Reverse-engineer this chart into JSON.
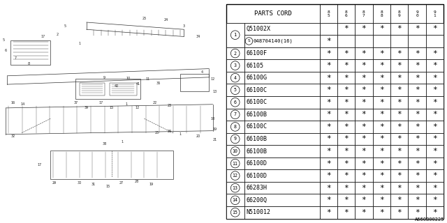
{
  "title": "PARTS CORD",
  "columns": [
    "85",
    "86",
    "87",
    "88",
    "89",
    "90",
    "91"
  ],
  "rows": [
    {
      "num": "1",
      "circled": false,
      "sub_s": false,
      "part": "Q51002X",
      "marks": [
        false,
        true,
        true,
        true,
        true,
        true,
        true
      ]
    },
    {
      "num": "1",
      "circled": false,
      "sub_s": true,
      "part": "048704140(16)",
      "marks": [
        true,
        false,
        false,
        false,
        false,
        false,
        false
      ]
    },
    {
      "num": "2",
      "circled": true,
      "sub_s": false,
      "part": "66100F",
      "marks": [
        true,
        true,
        true,
        true,
        true,
        true,
        true
      ]
    },
    {
      "num": "3",
      "circled": true,
      "sub_s": false,
      "part": "66105",
      "marks": [
        true,
        true,
        true,
        true,
        true,
        true,
        true
      ]
    },
    {
      "num": "4",
      "circled": true,
      "sub_s": false,
      "part": "66100G",
      "marks": [
        true,
        true,
        true,
        true,
        true,
        true,
        true
      ]
    },
    {
      "num": "5",
      "circled": true,
      "sub_s": false,
      "part": "66100C",
      "marks": [
        true,
        true,
        true,
        true,
        true,
        true,
        true
      ]
    },
    {
      "num": "6",
      "circled": true,
      "sub_s": false,
      "part": "66100C",
      "marks": [
        true,
        true,
        true,
        true,
        true,
        true,
        true
      ]
    },
    {
      "num": "7",
      "circled": true,
      "sub_s": false,
      "part": "66100B",
      "marks": [
        true,
        true,
        true,
        true,
        true,
        true,
        true
      ]
    },
    {
      "num": "8",
      "circled": true,
      "sub_s": false,
      "part": "66100C",
      "marks": [
        true,
        true,
        true,
        true,
        true,
        true,
        true
      ]
    },
    {
      "num": "9",
      "circled": true,
      "sub_s": false,
      "part": "66100B",
      "marks": [
        true,
        true,
        true,
        true,
        true,
        true,
        true
      ]
    },
    {
      "num": "10",
      "circled": true,
      "sub_s": false,
      "part": "66100B",
      "marks": [
        true,
        true,
        true,
        true,
        true,
        true,
        true
      ]
    },
    {
      "num": "11",
      "circled": true,
      "sub_s": false,
      "part": "66100D",
      "marks": [
        true,
        true,
        true,
        true,
        true,
        true,
        true
      ]
    },
    {
      "num": "12",
      "circled": true,
      "sub_s": false,
      "part": "66100D",
      "marks": [
        true,
        true,
        true,
        true,
        true,
        true,
        true
      ]
    },
    {
      "num": "13",
      "circled": true,
      "sub_s": false,
      "part": "66283H",
      "marks": [
        true,
        true,
        true,
        true,
        true,
        true,
        true
      ]
    },
    {
      "num": "14",
      "circled": true,
      "sub_s": false,
      "part": "66200Q",
      "marks": [
        true,
        true,
        true,
        true,
        true,
        true,
        true
      ]
    },
    {
      "num": "15",
      "circled": true,
      "sub_s": false,
      "part": "N510012",
      "marks": [
        true,
        true,
        true,
        true,
        true,
        true,
        true
      ]
    }
  ],
  "diagram_label": "A660B00225",
  "bg_color": "#ffffff",
  "lc": "#000000",
  "tc": "#000000",
  "fs": 6.0
}
